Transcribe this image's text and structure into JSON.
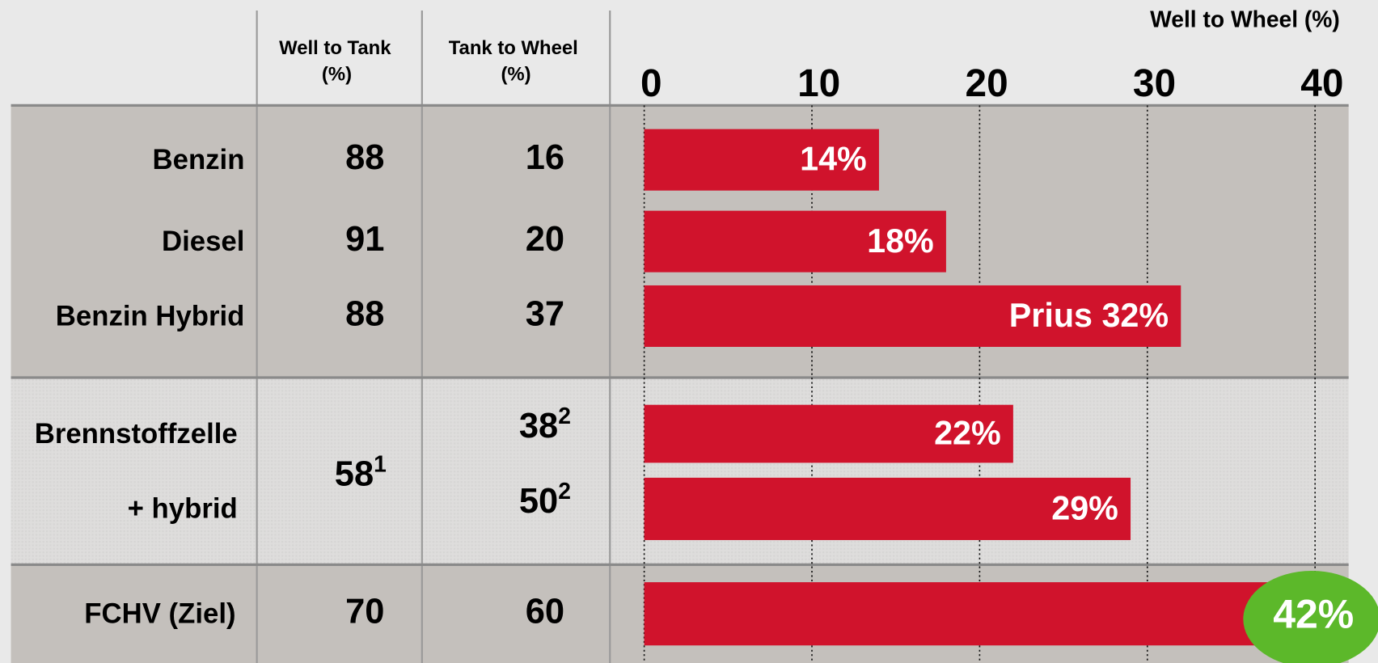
{
  "chart_data": {
    "type": "bar",
    "title": "Well to Wheel (%)",
    "categories": [
      "Benzin",
      "Diesel",
      "Benzin Hybrid",
      "Brennstoffzelle",
      "+ hybrid",
      "FCHV (Ziel)"
    ],
    "values": [
      14,
      18,
      32,
      22,
      29,
      42
    ],
    "value_labels": [
      "14%",
      "18%",
      "Prius 32%",
      "22%",
      "29%",
      "42%"
    ],
    "color": "#d0132c",
    "badge_color": "#5cb82a",
    "xlim": [
      0,
      42
    ],
    "xticks": [
      0,
      10,
      20,
      30,
      40
    ],
    "grid": true
  },
  "table": {
    "headers": [
      [
        "Well to Tank",
        "(%)"
      ],
      [
        "Tank to Wheel",
        "(%)"
      ]
    ],
    "rows": [
      {
        "well_to_tank": 88,
        "tank_to_wheel": 16
      },
      {
        "well_to_tank": 91,
        "tank_to_wheel": 20
      },
      {
        "well_to_tank": 88,
        "tank_to_wheel": 37
      },
      {
        "tank_to_wheel": 38,
        "tank_to_wheel_note": "2"
      },
      {
        "tank_to_wheel": 50,
        "tank_to_wheel_note": "2"
      },
      {
        "well_to_tank": 70,
        "tank_to_wheel": 60
      }
    ],
    "fuel_cell_well_to_tank": 58,
    "fuel_cell_well_to_tank_note": "1"
  }
}
